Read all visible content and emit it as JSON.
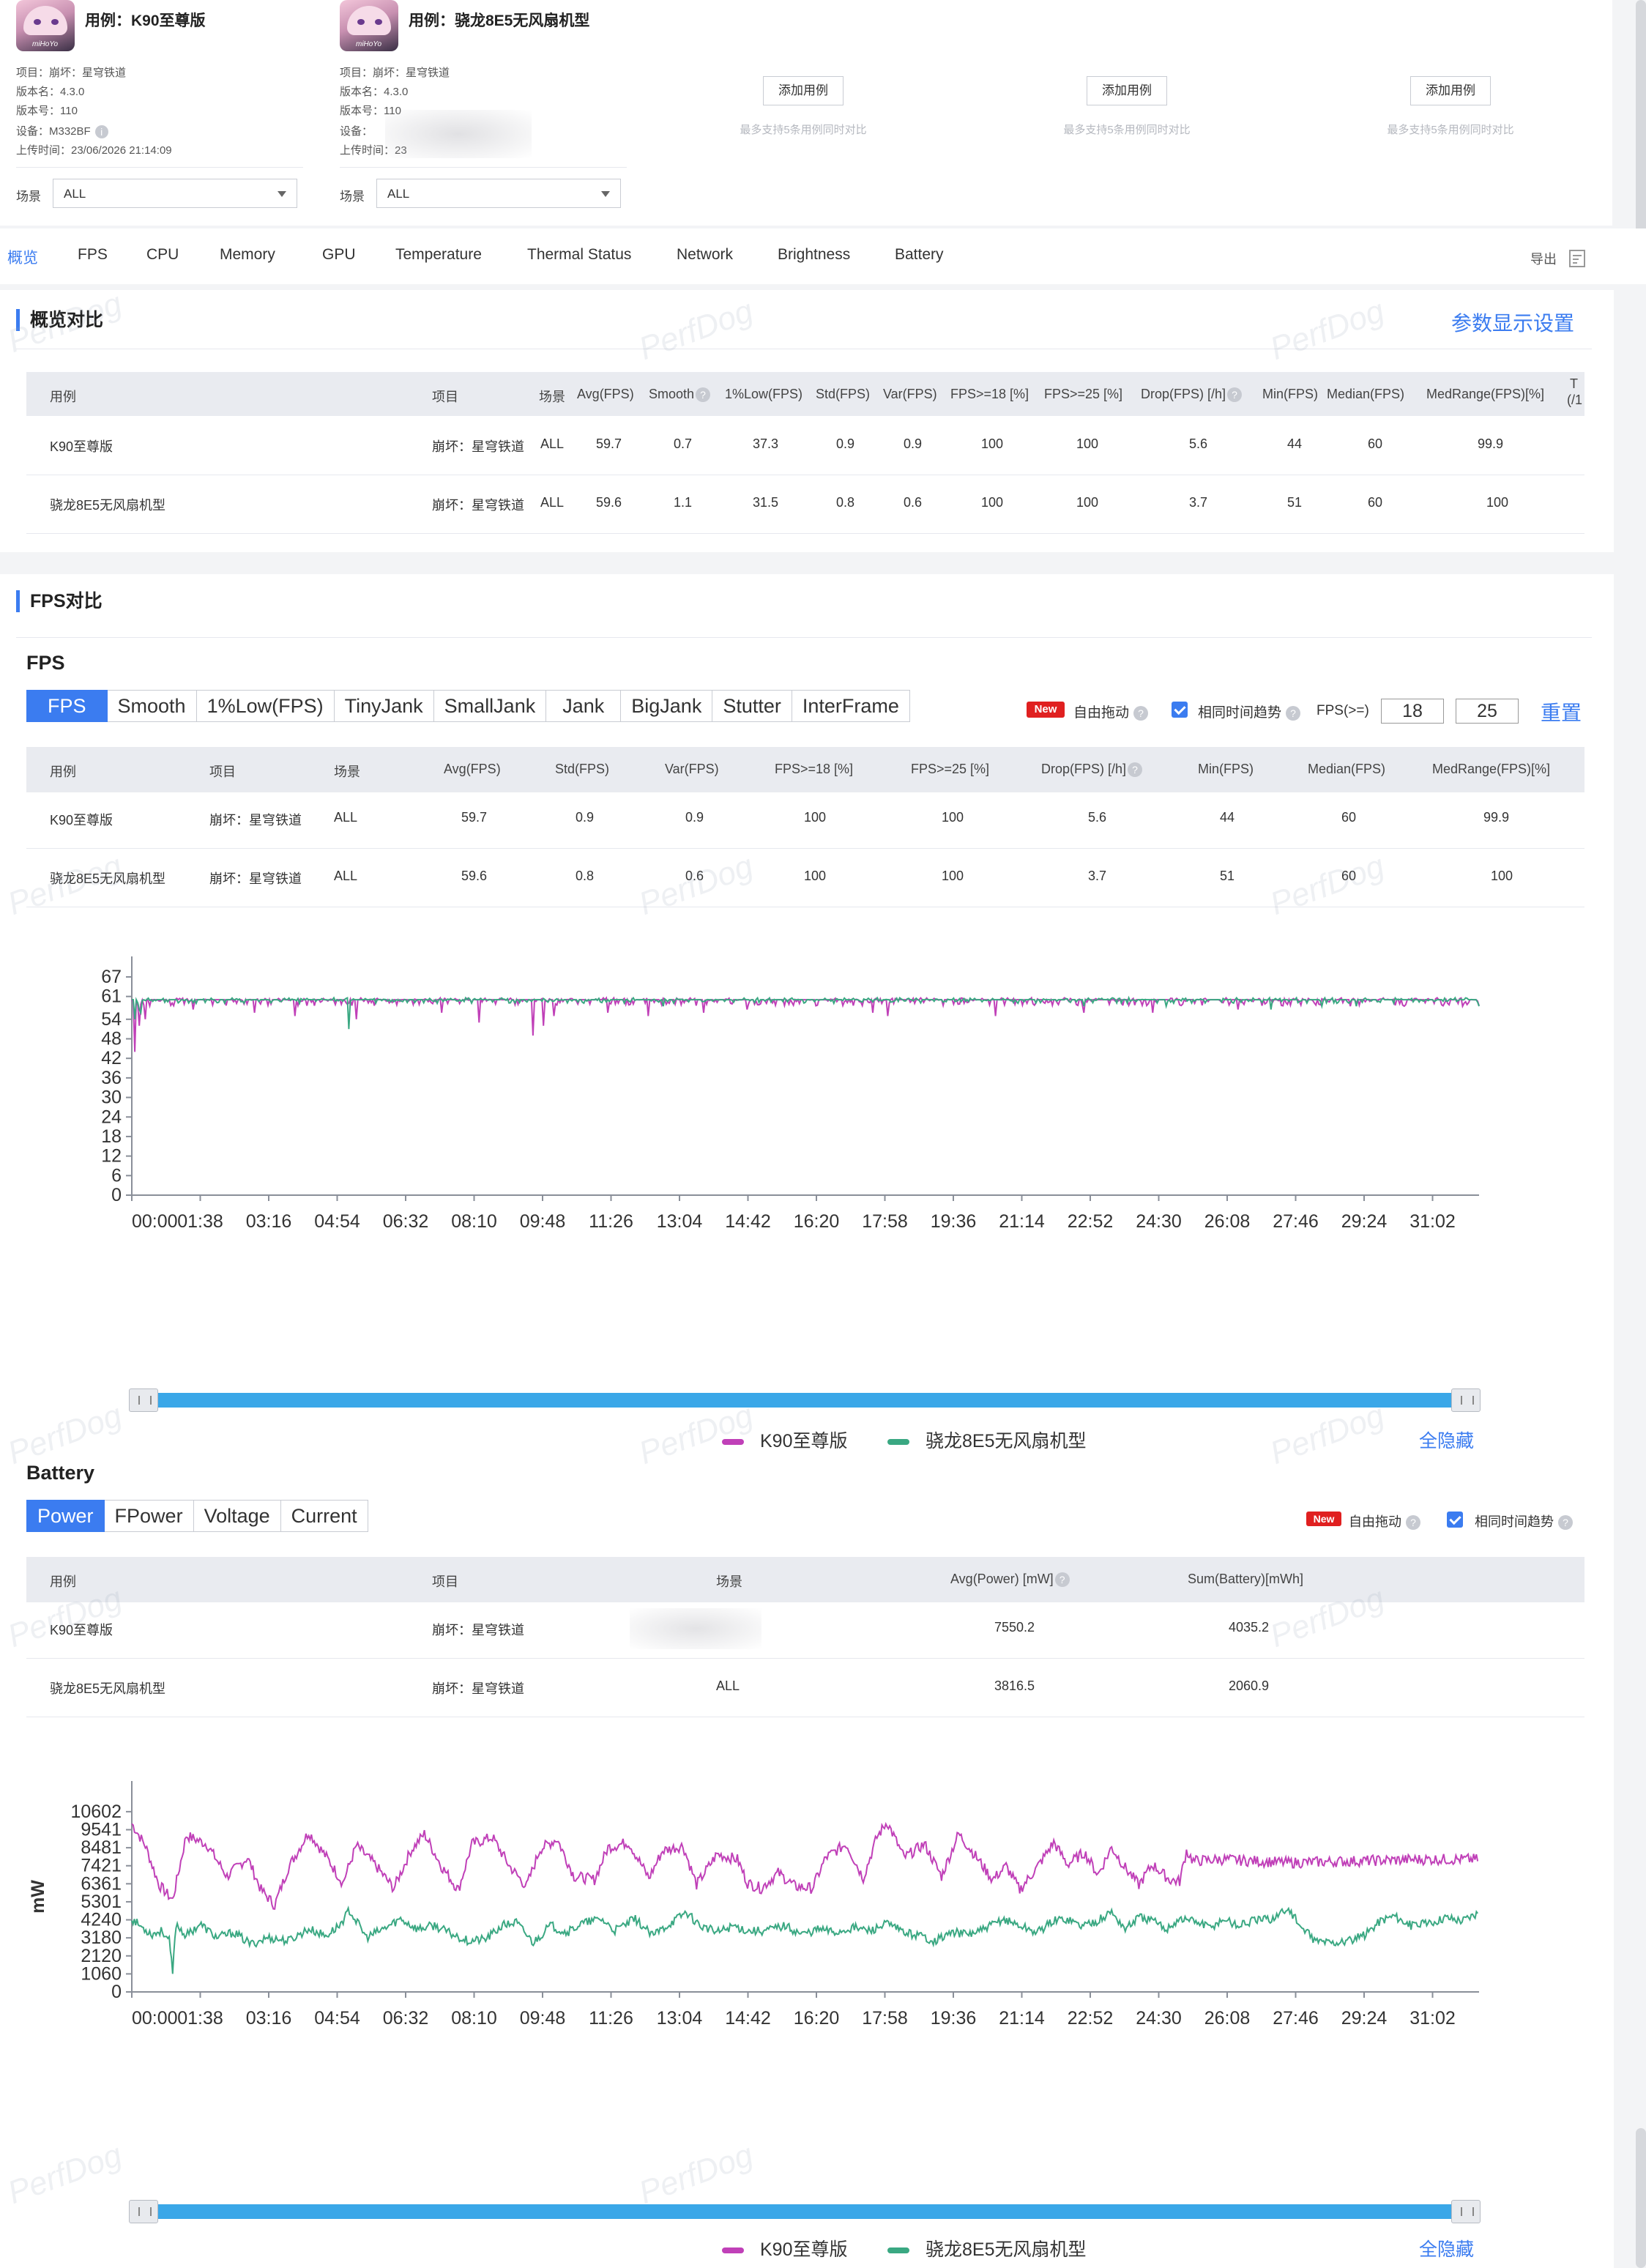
{
  "cases": [
    {
      "title": "用例：K90至尊版",
      "avatar_icon": "game-avatar-icon",
      "logo": "miHoYo",
      "meta": [
        "项目：崩坏：星穹铁道",
        "版本名：4.3.0",
        "版本号：110",
        "设备：M332BF",
        "上传时间：23/06/2026 21:14:09"
      ],
      "scene_label": "场景",
      "scene_value": "ALL"
    },
    {
      "title": "用例：骁龙8E5无风扇机型",
      "avatar_icon": "game-avatar-icon",
      "logo": "miHoYo",
      "meta": [
        "项目：崩坏：星穹铁道",
        "版本名：4.3.0",
        "版本号：110",
        "设备：",
        "上传时间：23"
      ],
      "scene_label": "场景",
      "scene_value": "ALL"
    }
  ],
  "add_slots": [
    {
      "button": "添加用例",
      "hint": "最多支持5条用例同时对比"
    },
    {
      "button": "添加用例",
      "hint": "最多支持5条用例同时对比"
    },
    {
      "button": "添加用例",
      "hint": "最多支持5条用例同时对比"
    }
  ],
  "tabs": [
    "概览",
    "FPS",
    "CPU",
    "Memory",
    "GPU",
    "Temperature",
    "Thermal Status",
    "Network",
    "Brightness",
    "Battery"
  ],
  "export_label": "导出",
  "watermark": "PerfDog",
  "overview": {
    "title": "概览对比",
    "settings_link": "参数显示设置",
    "headers": [
      "用例",
      "项目",
      "场景",
      "Avg(FPS)",
      "Smooth",
      "1%Low(FPS)",
      "Std(FPS)",
      "Var(FPS)",
      "FPS>=18 [%]",
      "FPS>=25 [%]",
      "Drop(FPS) [/h]",
      "Min(FPS)",
      "Median(FPS)",
      "MedRange(FPS)[%]",
      "T",
      "(/1"
    ],
    "rows": [
      [
        "K90至尊版",
        "崩坏：星穹铁道",
        "ALL",
        "59.7",
        "0.7",
        "37.3",
        "0.9",
        "0.9",
        "100",
        "100",
        "5.6",
        "44",
        "60",
        "99.9"
      ],
      [
        "骁龙8E5无风扇机型",
        "崩坏：星穹铁道",
        "ALL",
        "59.6",
        "1.1",
        "31.5",
        "0.8",
        "0.6",
        "100",
        "100",
        "3.7",
        "51",
        "60",
        "100"
      ]
    ]
  },
  "fps_section": {
    "title": "FPS对比",
    "subtitle": "FPS",
    "segments": [
      "FPS",
      "Smooth",
      "1%Low(FPS)",
      "TinyJank",
      "SmallJank",
      "Jank",
      "BigJank",
      "Stutter",
      "InterFrame"
    ],
    "new_badge": "New",
    "free_drag": "自由拖动",
    "same_time": "相同时间趋势",
    "fps_ge_label": "FPS(>=)",
    "fps_threshold_1": "18",
    "fps_threshold_2": "25",
    "reset": "重置",
    "headers": [
      "用例",
      "项目",
      "场景",
      "Avg(FPS)",
      "Std(FPS)",
      "Var(FPS)",
      "FPS>=18 [%]",
      "FPS>=25 [%]",
      "Drop(FPS) [/h]",
      "Min(FPS)",
      "Median(FPS)",
      "MedRange(FPS)[%]"
    ],
    "rows": [
      [
        "K90至尊版",
        "崩坏：星穹铁道",
        "ALL",
        "59.7",
        "0.9",
        "0.9",
        "100",
        "100",
        "5.6",
        "44",
        "60",
        "99.9"
      ],
      [
        "骁龙8E5无风扇机型",
        "崩坏：星穹铁道",
        "ALL",
        "59.6",
        "0.8",
        "0.6",
        "100",
        "100",
        "3.7",
        "51",
        "60",
        "100"
      ]
    ],
    "hide_all": "全隐藏"
  },
  "battery_section": {
    "subtitle": "Battery",
    "segments": [
      "Power",
      "FPower",
      "Voltage",
      "Current"
    ],
    "new_badge": "New",
    "free_drag": "自由拖动",
    "same_time": "相同时间趋势",
    "headers": [
      "用例",
      "项目",
      "场景",
      "Avg(Power) [mW]",
      "Sum(Battery)[mWh]"
    ],
    "rows": [
      [
        "K90至尊版",
        "崩坏：星穹铁道",
        "",
        "7550.2",
        "4035.2"
      ],
      [
        "骁龙8E5无风扇机型",
        "崩坏：星穹铁道",
        "ALL",
        "3816.5",
        "2060.9"
      ]
    ],
    "hide_all": "全隐藏"
  },
  "colors": {
    "accent": "#3b7cf0",
    "series_k90": "#c040b8",
    "series_8e5": "#3aa882"
  },
  "chart_data": [
    {
      "type": "line",
      "title": "",
      "xlabel": "",
      "ylabel": "",
      "x_ticks": [
        "00:00",
        "01:38",
        "03:16",
        "04:54",
        "06:32",
        "08:10",
        "09:48",
        "11:26",
        "13:04",
        "14:42",
        "16:20",
        "17:58",
        "19:36",
        "21:14",
        "22:52",
        "24:30",
        "26:08",
        "27:46",
        "29:24",
        "31:02"
      ],
      "y_ticks": [
        0,
        6,
        12,
        18,
        24,
        30,
        36,
        42,
        48,
        54,
        61,
        67
      ],
      "ylim": [
        0,
        67
      ],
      "x_range_seconds": [
        0,
        1980
      ],
      "legend_position": "bottom-center",
      "series": [
        {
          "name": "K90至尊版",
          "color": "#c040b8",
          "baseline": 60,
          "noise": 1.2,
          "dips": [
            [
              5,
              44
            ],
            [
              10,
              52
            ],
            [
              20,
              54
            ],
            [
              90,
              57
            ],
            [
              180,
              56
            ],
            [
              240,
              55
            ],
            [
              330,
              54
            ],
            [
              455,
              56
            ],
            [
              510,
              53
            ],
            [
              590,
              49
            ],
            [
              605,
              52
            ],
            [
              620,
              55
            ],
            [
              700,
              56
            ],
            [
              760,
              55
            ],
            [
              840,
              56
            ],
            [
              905,
              57
            ],
            [
              1090,
              56
            ],
            [
              1110,
              55
            ],
            [
              1270,
              55
            ],
            [
              1400,
              56
            ],
            [
              1500,
              56
            ],
            [
              1625,
              57
            ],
            [
              1790,
              58
            ],
            [
              1870,
              58
            ],
            [
              1955,
              58
            ]
          ]
        },
        {
          "name": "骁龙8E5无风扇机型",
          "color": "#3aa882",
          "baseline": 60,
          "noise": 0.7,
          "dips": [
            [
              4,
              54
            ],
            [
              10,
              57
            ],
            [
              14,
              56
            ],
            [
              320,
              51
            ],
            [
              780,
              58
            ],
            [
              1400,
              58
            ],
            [
              1520,
              58
            ],
            [
              1675,
              57
            ],
            [
              1750,
              58
            ],
            [
              1800,
              58
            ],
            [
              1980,
              58
            ]
          ]
        }
      ]
    },
    {
      "type": "line",
      "title": "",
      "xlabel": "",
      "ylabel": "mW",
      "x_ticks": [
        "00:00",
        "01:38",
        "03:16",
        "04:54",
        "06:32",
        "08:10",
        "09:48",
        "11:26",
        "13:04",
        "14:42",
        "16:20",
        "17:58",
        "19:36",
        "21:14",
        "22:52",
        "24:30",
        "26:08",
        "27:46",
        "29:24",
        "31:02"
      ],
      "y_ticks": [
        0,
        1060,
        2120,
        3180,
        4240,
        5301,
        6361,
        7421,
        8481,
        9541,
        10602
      ],
      "ylim": [
        0,
        11200
      ],
      "x_range_seconds": [
        0,
        1980
      ],
      "legend_position": "bottom-center",
      "series": [
        {
          "name": "K90至尊版",
          "color": "#c040b8",
          "points": [
            [
              0,
              9900
            ],
            [
              20,
              8600
            ],
            [
              40,
              6300
            ],
            [
              60,
              5400
            ],
            [
              80,
              9200
            ],
            [
              110,
              8700
            ],
            [
              140,
              6800
            ],
            [
              170,
              7900
            ],
            [
              190,
              6000
            ],
            [
              210,
              5100
            ],
            [
              230,
              7300
            ],
            [
              260,
              9400
            ],
            [
              290,
              7700
            ],
            [
              310,
              6400
            ],
            [
              330,
              8600
            ],
            [
              355,
              7600
            ],
            [
              385,
              6100
            ],
            [
              410,
              8300
            ],
            [
              430,
              9300
            ],
            [
              455,
              7400
            ],
            [
              480,
              6000
            ],
            [
              500,
              8700
            ],
            [
              530,
              9100
            ],
            [
              555,
              7400
            ],
            [
              580,
              6200
            ],
            [
              600,
              8400
            ],
            [
              625,
              9000
            ],
            [
              650,
              6800
            ],
            [
              680,
              6600
            ],
            [
              700,
              8500
            ],
            [
              730,
              8800
            ],
            [
              760,
              6700
            ],
            [
              780,
              8300
            ],
            [
              810,
              8600
            ],
            [
              830,
              6300
            ],
            [
              860,
              8100
            ],
            [
              890,
              7800
            ],
            [
              905,
              6400
            ],
            [
              925,
              6100
            ],
            [
              950,
              7000
            ],
            [
              975,
              6200
            ],
            [
              1000,
              6100
            ],
            [
              1020,
              7900
            ],
            [
              1050,
              8700
            ],
            [
              1075,
              6700
            ],
            [
              1095,
              9100
            ],
            [
              1110,
              10000
            ],
            [
              1135,
              7900
            ],
            [
              1165,
              8700
            ],
            [
              1190,
              6800
            ],
            [
              1215,
              9300
            ],
            [
              1240,
              8000
            ],
            [
              1265,
              6600
            ],
            [
              1285,
              7400
            ],
            [
              1305,
              6000
            ],
            [
              1330,
              7300
            ],
            [
              1355,
              8800
            ],
            [
              1375,
              7500
            ],
            [
              1400,
              8200
            ],
            [
              1420,
              6900
            ],
            [
              1440,
              8500
            ],
            [
              1460,
              7300
            ],
            [
              1480,
              6300
            ],
            [
              1500,
              7500
            ],
            [
              1525,
              6600
            ],
            [
              1540,
              6500
            ],
            [
              1550,
              8300
            ],
            [
              1560,
              7700
            ],
            [
              1600,
              7800
            ],
            [
              1700,
              7600
            ],
            [
              1800,
              7700
            ],
            [
              1900,
              7800
            ],
            [
              1980,
              7800
            ]
          ]
        },
        {
          "name": "骁龙8E5无风扇机型",
          "color": "#3aa882",
          "points": [
            [
              0,
              4300
            ],
            [
              15,
              3800
            ],
            [
              30,
              3400
            ],
            [
              45,
              3600
            ],
            [
              55,
              3000
            ],
            [
              60,
              1100
            ],
            [
              65,
              4000
            ],
            [
              80,
              3300
            ],
            [
              100,
              4000
            ],
            [
              125,
              3200
            ],
            [
              150,
              3500
            ],
            [
              175,
              2800
            ],
            [
              200,
              3200
            ],
            [
              230,
              3000
            ],
            [
              260,
              3700
            ],
            [
              285,
              3300
            ],
            [
              305,
              3900
            ],
            [
              320,
              4800
            ],
            [
              345,
              3200
            ],
            [
              370,
              3700
            ],
            [
              395,
              4300
            ],
            [
              420,
              3700
            ],
            [
              445,
              3900
            ],
            [
              470,
              3400
            ],
            [
              495,
              3000
            ],
            [
              520,
              3100
            ],
            [
              545,
              3900
            ],
            [
              565,
              4100
            ],
            [
              590,
              2900
            ],
            [
              615,
              3900
            ],
            [
              640,
              3500
            ],
            [
              660,
              4000
            ],
            [
              690,
              4300
            ],
            [
              710,
              3600
            ],
            [
              740,
              4300
            ],
            [
              765,
              3300
            ],
            [
              790,
              4000
            ],
            [
              815,
              4700
            ],
            [
              835,
              3900
            ],
            [
              860,
              3500
            ],
            [
              885,
              3900
            ],
            [
              905,
              3600
            ],
            [
              930,
              3600
            ],
            [
              960,
              3900
            ],
            [
              985,
              3400
            ],
            [
              1010,
              3700
            ],
            [
              1035,
              3500
            ],
            [
              1060,
              3800
            ],
            [
              1085,
              3600
            ],
            [
              1110,
              4000
            ],
            [
              1135,
              3500
            ],
            [
              1160,
              3300
            ],
            [
              1180,
              3000
            ],
            [
              1205,
              3500
            ],
            [
              1230,
              3400
            ],
            [
              1255,
              3700
            ],
            [
              1280,
              4300
            ],
            [
              1305,
              3900
            ],
            [
              1330,
              3500
            ],
            [
              1355,
              4200
            ],
            [
              1375,
              4300
            ],
            [
              1395,
              3900
            ],
            [
              1420,
              4200
            ],
            [
              1440,
              4700
            ],
            [
              1460,
              3700
            ],
            [
              1480,
              4400
            ],
            [
              1500,
              4200
            ],
            [
              1520,
              3700
            ],
            [
              1540,
              4300
            ],
            [
              1560,
              4200
            ],
            [
              1585,
              3800
            ],
            [
              1605,
              4300
            ],
            [
              1625,
              3900
            ],
            [
              1650,
              4200
            ],
            [
              1675,
              4300
            ],
            [
              1700,
              4900
            ],
            [
              1720,
              3700
            ],
            [
              1740,
              3000
            ],
            [
              1765,
              2900
            ],
            [
              1790,
              3000
            ],
            [
              1810,
              3300
            ],
            [
              1835,
              4200
            ],
            [
              1855,
              4500
            ],
            [
              1880,
              3900
            ],
            [
              1905,
              4000
            ],
            [
              1930,
              4400
            ],
            [
              1955,
              4200
            ],
            [
              1980,
              4700
            ]
          ]
        }
      ]
    }
  ]
}
